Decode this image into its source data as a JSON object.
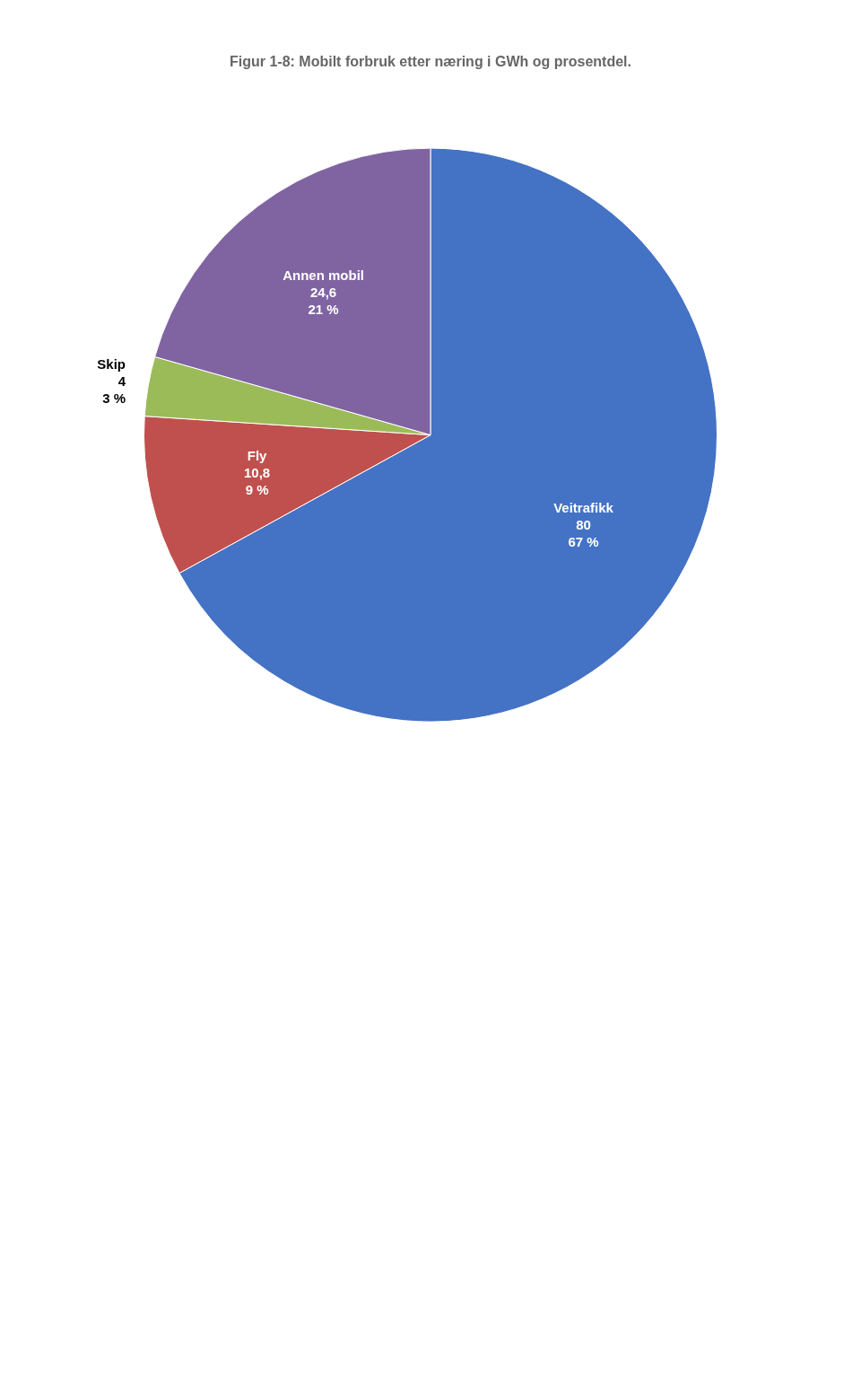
{
  "chart_data": {
    "type": "pie",
    "title": "Figur 1-8: Mobilt forbruk etter næring i GWh og prosentdel.",
    "categories": [
      "Veitrafikk",
      "Fly",
      "Skip",
      "Annen mobil"
    ],
    "values": [
      80,
      10.8,
      4,
      24.6
    ],
    "value_labels": [
      "80\n67 %",
      "10,8\n9 %",
      "4\n3 %",
      "24,6\n21 %"
    ],
    "colors": [
      "#4472C4",
      "#C0504D",
      "#9BBB59",
      "#8064A2"
    ],
    "data_labels": true
  }
}
